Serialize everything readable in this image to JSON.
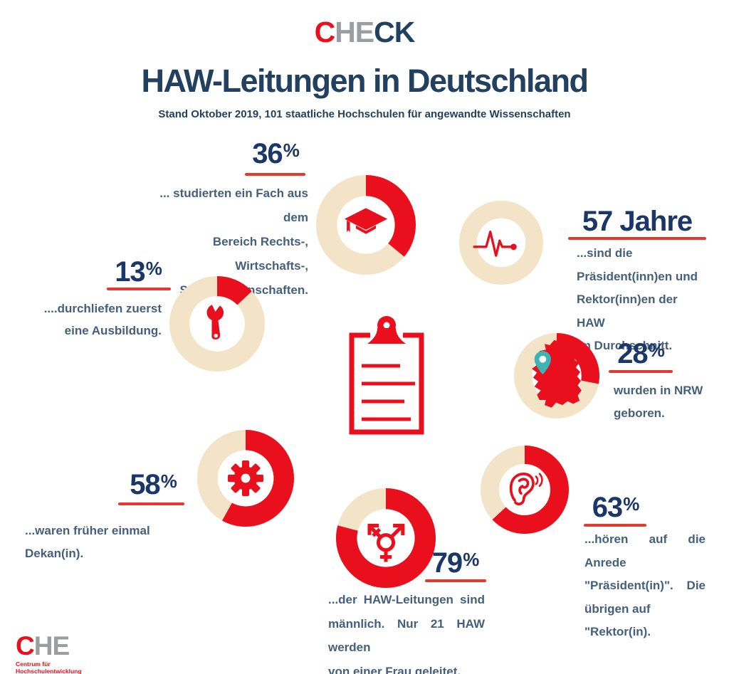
{
  "header": {
    "logo": {
      "c": "C",
      "he": "HE",
      "ck": "CK"
    },
    "title": "HAW-Leitungen in Deutschland",
    "subtitle": "Stand Oktober 2019, 101 staatliche Hochschulen für angewandte Wissenschaften"
  },
  "colors": {
    "red": "#e90f1c",
    "underline_red": "#e23a2c",
    "track_beige": "#f3e3c7",
    "navy_number": "#1b3767",
    "navy_title": "#22405f",
    "text_slate": "#44607c",
    "gray_logo": "#9b9da0",
    "teal_pin": "#3cb4b4"
  },
  "chart_data": {
    "type": "pie",
    "variant": "donut-infographic",
    "title": "HAW-Leitungen in Deutschland",
    "subtitle": "Stand Oktober 2019, 101 staatliche Hochschulen für angewandte Wissenschaften",
    "track_color": "#f3e3c7",
    "fill_color": "#e90f1c",
    "donuts": [
      {
        "id": "studium",
        "num": "36",
        "suffix": "%",
        "value": 36,
        "donut_fill": 36,
        "icon": "graduation-cap",
        "lines": [
          "... studierten ein Fach aus dem",
          "Bereich Rechts-, Wirtschafts-,",
          "Sozialwissenschaften."
        ]
      },
      {
        "id": "ausbildung",
        "num": "13",
        "suffix": "%",
        "value": 13,
        "donut_fill": 13,
        "icon": "wrench",
        "lines": [
          "....durchliefen zuerst",
          "eine Ausbildung."
        ]
      },
      {
        "id": "alter",
        "num": "57",
        "suffix": " Jahre",
        "value": 57,
        "donut_fill": 0,
        "icon": "pulse",
        "lines": [
          "...sind die",
          "Präsident(inn)en und",
          "Rektor(inn)en der HAW",
          "im Durchschnitt."
        ]
      },
      {
        "id": "nrw",
        "num": "28",
        "suffix": "%",
        "value": 28,
        "donut_fill": 28,
        "icon": "germany-map",
        "lines": [
          "wurden in NRW",
          "geboren."
        ]
      },
      {
        "id": "dekan",
        "num": "58",
        "suffix": "%",
        "value": 58,
        "donut_fill": 58,
        "icon": "gear",
        "lines": [
          "...waren früher einmal Dekan(in)."
        ]
      },
      {
        "id": "maennlich",
        "num": "79",
        "suffix": "%",
        "value": 79,
        "donut_fill": 79,
        "icon": "gender",
        "lines": [
          "...der HAW-Leitungen sind",
          "männlich. Nur 21 HAW werden",
          "von einer Frau geleitet."
        ]
      },
      {
        "id": "anrede",
        "num": "63",
        "suffix": "%",
        "value": 63,
        "donut_fill": 63,
        "icon": "ear",
        "lines": [
          "...hören auf die Anrede",
          "\"Präsident(in)\". Die",
          "übrigen auf \"Rektor(in)."
        ]
      }
    ]
  },
  "footer": {
    "logo": {
      "c": "C",
      "he": "HE",
      "tagline_line1": "Centrum für",
      "tagline_line2": "Hochschulentwicklung"
    }
  }
}
